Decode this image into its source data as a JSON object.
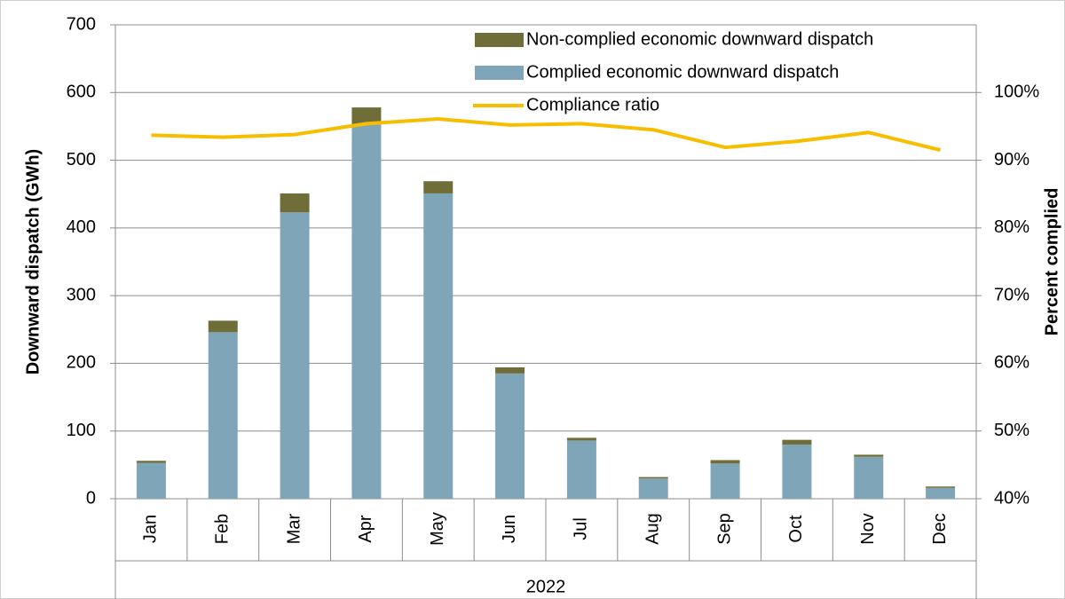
{
  "chart_data": {
    "type": "bar",
    "stacked": true,
    "categories": [
      "Jan",
      "Feb",
      "Mar",
      "Apr",
      "May",
      "Jun",
      "Jul",
      "Aug",
      "Sep",
      "Oct",
      "Nov",
      "Dec"
    ],
    "group_label": "2022",
    "y_label": "Downward dispatch (GWh)",
    "y2_label": "Percent complied",
    "series": [
      {
        "name": "Complied economic downward dispatch",
        "color": "#7fa6b8",
        "type": "bar",
        "values": [
          53,
          246,
          423,
          553,
          451,
          185,
          86,
          30,
          52,
          80,
          62,
          16
        ]
      },
      {
        "name": "Non-complied economic downward dispatch",
        "color": "#6f6e38",
        "type": "bar",
        "values": [
          3,
          17,
          28,
          25,
          18,
          9,
          4,
          2,
          5,
          7,
          3,
          2
        ]
      },
      {
        "name": "Compliance ratio",
        "color": "#f7be00",
        "type": "line",
        "axis": "y2",
        "values": [
          93.7,
          93.4,
          93.8,
          95.4,
          96.1,
          95.2,
          95.4,
          94.5,
          91.9,
          92.8,
          94.1,
          91.5
        ]
      }
    ],
    "ylim": [
      0,
      700
    ],
    "yticks": [
      0,
      100,
      200,
      300,
      400,
      500,
      600,
      700
    ],
    "y2lim": [
      40,
      110
    ],
    "y2ticks": [
      {
        "value": 40,
        "label": "40%"
      },
      {
        "value": 50,
        "label": "50%"
      },
      {
        "value": 60,
        "label": "60%"
      },
      {
        "value": 70,
        "label": "70%"
      },
      {
        "value": 80,
        "label": "80%"
      },
      {
        "value": 90,
        "label": "90%"
      },
      {
        "value": 100,
        "label": "100%"
      }
    ],
    "grid": true
  }
}
